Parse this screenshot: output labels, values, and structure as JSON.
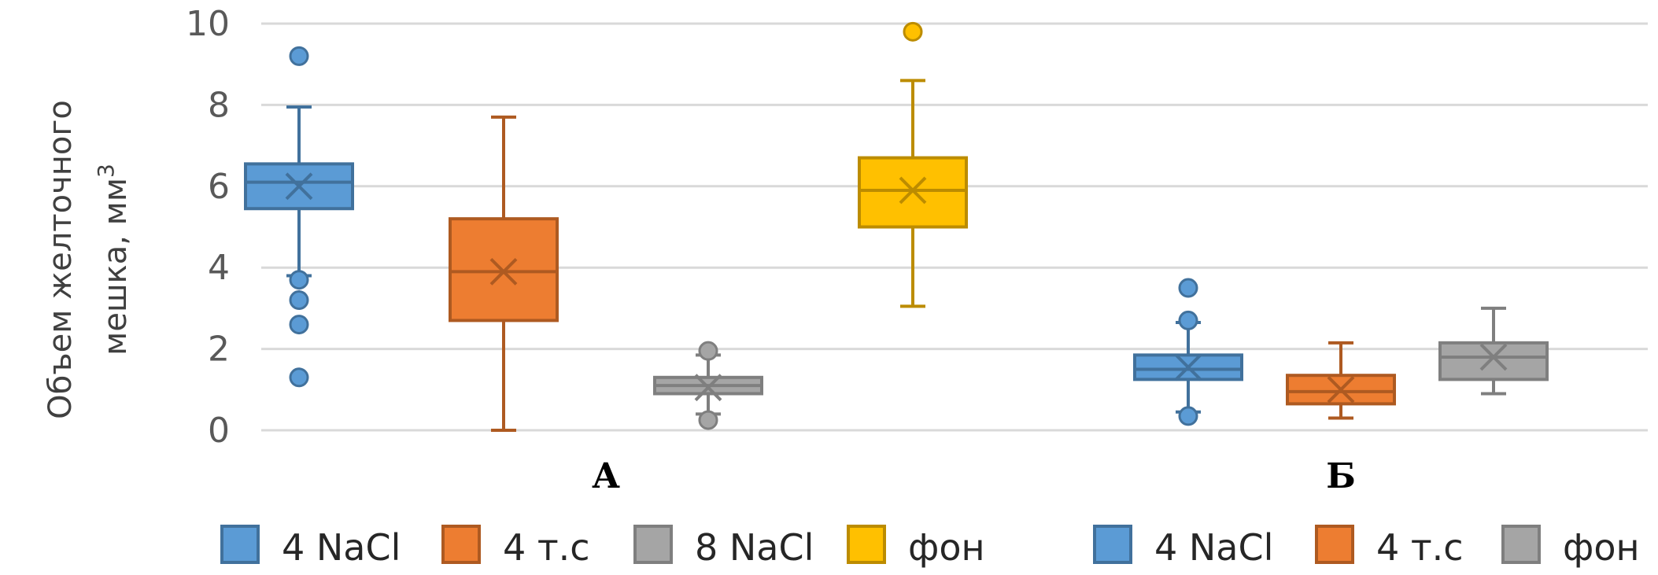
{
  "chart_data": {
    "type": "box",
    "ylabel_line1": "Объем желточного",
    "ylabel_line2": "мешка,  мм",
    "ylabel_sup": "3",
    "ylim": [
      0,
      10
    ],
    "yticks": [
      0,
      2,
      4,
      6,
      8,
      10
    ],
    "grid": true,
    "groups": [
      {
        "label": "А",
        "boxes": [
          {
            "name": "4 NaCl",
            "color": "#5B9BD5",
            "dark": "#41719C",
            "min": 3.8,
            "q1": 5.45,
            "median": 6.1,
            "q3": 6.55,
            "max": 7.95,
            "mean": 6.0,
            "outliers": [
              9.2,
              3.7,
              3.2,
              2.6,
              1.3
            ]
          },
          {
            "name": "4 т.с",
            "color": "#ED7D31",
            "dark": "#AE5A21",
            "min": 0.0,
            "q1": 2.7,
            "median": 3.9,
            "q3": 5.2,
            "max": 7.7,
            "mean": 3.9,
            "outliers": []
          },
          {
            "name": "8 NaCl",
            "color": "#A5A5A5",
            "dark": "#7F7F7F",
            "min": 0.4,
            "q1": 0.9,
            "median": 1.1,
            "q3": 1.3,
            "max": 1.85,
            "mean": 1.05,
            "outliers": [
              1.95,
              0.25
            ]
          },
          {
            "name": "фон",
            "color": "#FFC000",
            "dark": "#BC8C00",
            "min": 3.05,
            "q1": 5.0,
            "median": 5.9,
            "q3": 6.7,
            "max": 8.6,
            "mean": 5.9,
            "outliers": [
              9.8
            ]
          }
        ]
      },
      {
        "label": "Б",
        "boxes": [
          {
            "name": "4 NaCl",
            "color": "#5B9BD5",
            "dark": "#41719C",
            "min": 0.45,
            "q1": 1.25,
            "median": 1.5,
            "q3": 1.85,
            "max": 2.65,
            "mean": 1.55,
            "outliers": [
              3.5,
              2.7,
              0.35
            ]
          },
          {
            "name": "4 т.с",
            "color": "#ED7D31",
            "dark": "#AE5A21",
            "min": 0.3,
            "q1": 0.65,
            "median": 0.95,
            "q3": 1.35,
            "max": 2.15,
            "mean": 1.0,
            "outliers": []
          },
          {
            "name": "фон",
            "color": "#A5A5A5",
            "dark": "#7F7F7F",
            "min": 0.9,
            "q1": 1.25,
            "median": 1.8,
            "q3": 2.15,
            "max": 3.0,
            "mean": 1.8,
            "outliers": []
          }
        ]
      }
    ]
  }
}
